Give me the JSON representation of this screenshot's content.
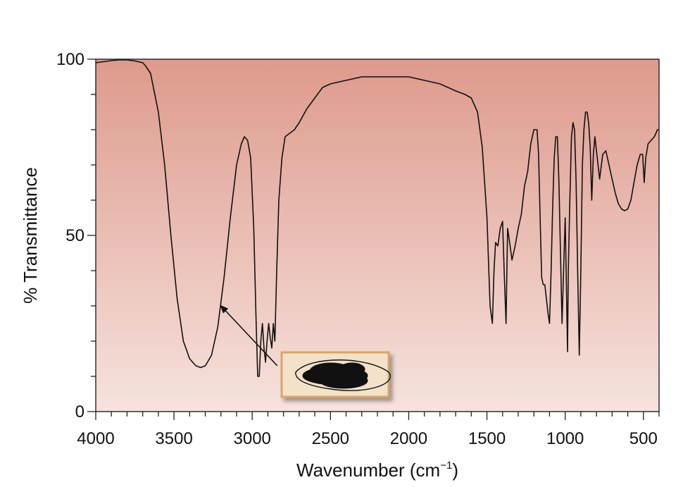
{
  "chart_data": {
    "type": "line",
    "title": "",
    "xlabel_main": "Wavenumber (cm",
    "xlabel_sup": "−1",
    "xlabel_close": ")",
    "ylabel": "% Transmittance",
    "xlim": [
      4000,
      400
    ],
    "ylim": [
      0,
      100
    ],
    "x_reversed": true,
    "grid": false,
    "background_gradient": [
      "#de9a8c",
      "#f6e2dd"
    ],
    "line_color": "#111111",
    "annotation_box_color": "#f3e1ca",
    "annotation_box_border": "#d8a66c",
    "x_ticks": [
      {
        "value": 4000,
        "label": "4000"
      },
      {
        "value": 3500,
        "label": "3500"
      },
      {
        "value": 3000,
        "label": "3000"
      },
      {
        "value": 2500,
        "label": "2500"
      },
      {
        "value": 2000,
        "label": "2000"
      },
      {
        "value": 1500,
        "label": "1500"
      },
      {
        "value": 1000,
        "label": "1000"
      },
      {
        "value": 500,
        "label": "500"
      }
    ],
    "y_ticks": [
      {
        "value": 0,
        "label": "0"
      },
      {
        "value": 50,
        "label": "50"
      },
      {
        "value": 100,
        "label": "100"
      }
    ],
    "series": [
      {
        "x": [
          4000,
          3950,
          3900,
          3850,
          3800,
          3750,
          3700,
          3680,
          3650,
          3600,
          3560,
          3520,
          3480,
          3440,
          3400,
          3360,
          3330,
          3300,
          3260,
          3220,
          3180,
          3140,
          3100,
          3070,
          3050,
          3030,
          3010,
          2990,
          2975,
          2965,
          2955,
          2945,
          2935,
          2925,
          2915,
          2905,
          2895,
          2885,
          2875,
          2865,
          2855,
          2845,
          2830,
          2810,
          2790,
          2760,
          2730,
          2700,
          2650,
          2600,
          2550,
          2500,
          2450,
          2400,
          2300,
          2200,
          2100,
          2000,
          1900,
          1800,
          1700,
          1640,
          1600,
          1560,
          1530,
          1500,
          1480,
          1465,
          1455,
          1445,
          1430,
          1415,
          1400,
          1390,
          1378,
          1368,
          1355,
          1340,
          1320,
          1300,
          1280,
          1260,
          1240,
          1220,
          1200,
          1180,
          1170,
          1160,
          1150,
          1140,
          1130,
          1120,
          1110,
          1100,
          1090,
          1080,
          1070,
          1060,
          1050,
          1040,
          1030,
          1020,
          1010,
          1000,
          990,
          985,
          980,
          970,
          960,
          950,
          940,
          930,
          920,
          910,
          900,
          890,
          880,
          870,
          860,
          850,
          840,
          830,
          820,
          810,
          800,
          780,
          760,
          740,
          720,
          700,
          680,
          660,
          640,
          620,
          600,
          580,
          560,
          540,
          520,
          505,
          495,
          485,
          470,
          450,
          430,
          410,
          400
        ],
        "y": [
          99,
          99.3,
          99.6,
          99.8,
          99.8,
          99.5,
          99.0,
          98.0,
          96.0,
          85.0,
          70.0,
          50.0,
          32.0,
          20.0,
          15.0,
          13.0,
          12.5,
          13.0,
          16.0,
          24.0,
          38.0,
          55.0,
          70.0,
          76.0,
          78.0,
          77.0,
          72.0,
          52.0,
          25.0,
          10.0,
          10.0,
          20.0,
          25.0,
          18.0,
          14.0,
          20.0,
          25.0,
          21.0,
          18.0,
          25.0,
          20.0,
          38.0,
          60.0,
          72.0,
          78.0,
          79.0,
          80.0,
          82.0,
          86.0,
          89.0,
          92.0,
          93.0,
          93.5,
          94.0,
          95.0,
          95.0,
          95.0,
          95.0,
          94.0,
          93.0,
          91.0,
          90.0,
          89.0,
          85.0,
          75.0,
          55.0,
          30.0,
          25.0,
          40.0,
          48.0,
          47.0,
          52.0,
          54.0,
          40.0,
          25.0,
          52.0,
          48.0,
          43.0,
          47.0,
          52.0,
          56.0,
          64.0,
          68.0,
          76.0,
          80.0,
          80.0,
          73.0,
          55.0,
          38.0,
          36.0,
          36.0,
          32.0,
          28.0,
          25.0,
          40.0,
          58.0,
          72.0,
          78.0,
          78.0,
          65.0,
          45.0,
          25.0,
          40.0,
          55.0,
          30.0,
          17.0,
          40.0,
          60.0,
          78.0,
          82.0,
          80.0,
          65.0,
          40.0,
          16.0,
          40.0,
          70.0,
          80.0,
          85.0,
          85.0,
          82.0,
          75.0,
          60.0,
          73.0,
          78.0,
          74.0,
          66.0,
          73.0,
          74.0,
          70.0,
          66.0,
          62.0,
          59.0,
          57.5,
          57.0,
          57.5,
          60.0,
          65.0,
          70.0,
          73.0,
          73.0,
          65.0,
          72.0,
          76.0,
          77.0,
          78.0,
          80.0,
          80.0
        ]
      }
    ],
    "annotation": {
      "arrow_from": [
        2840,
        13
      ],
      "arrow_to": [
        3200,
        30
      ]
    }
  }
}
